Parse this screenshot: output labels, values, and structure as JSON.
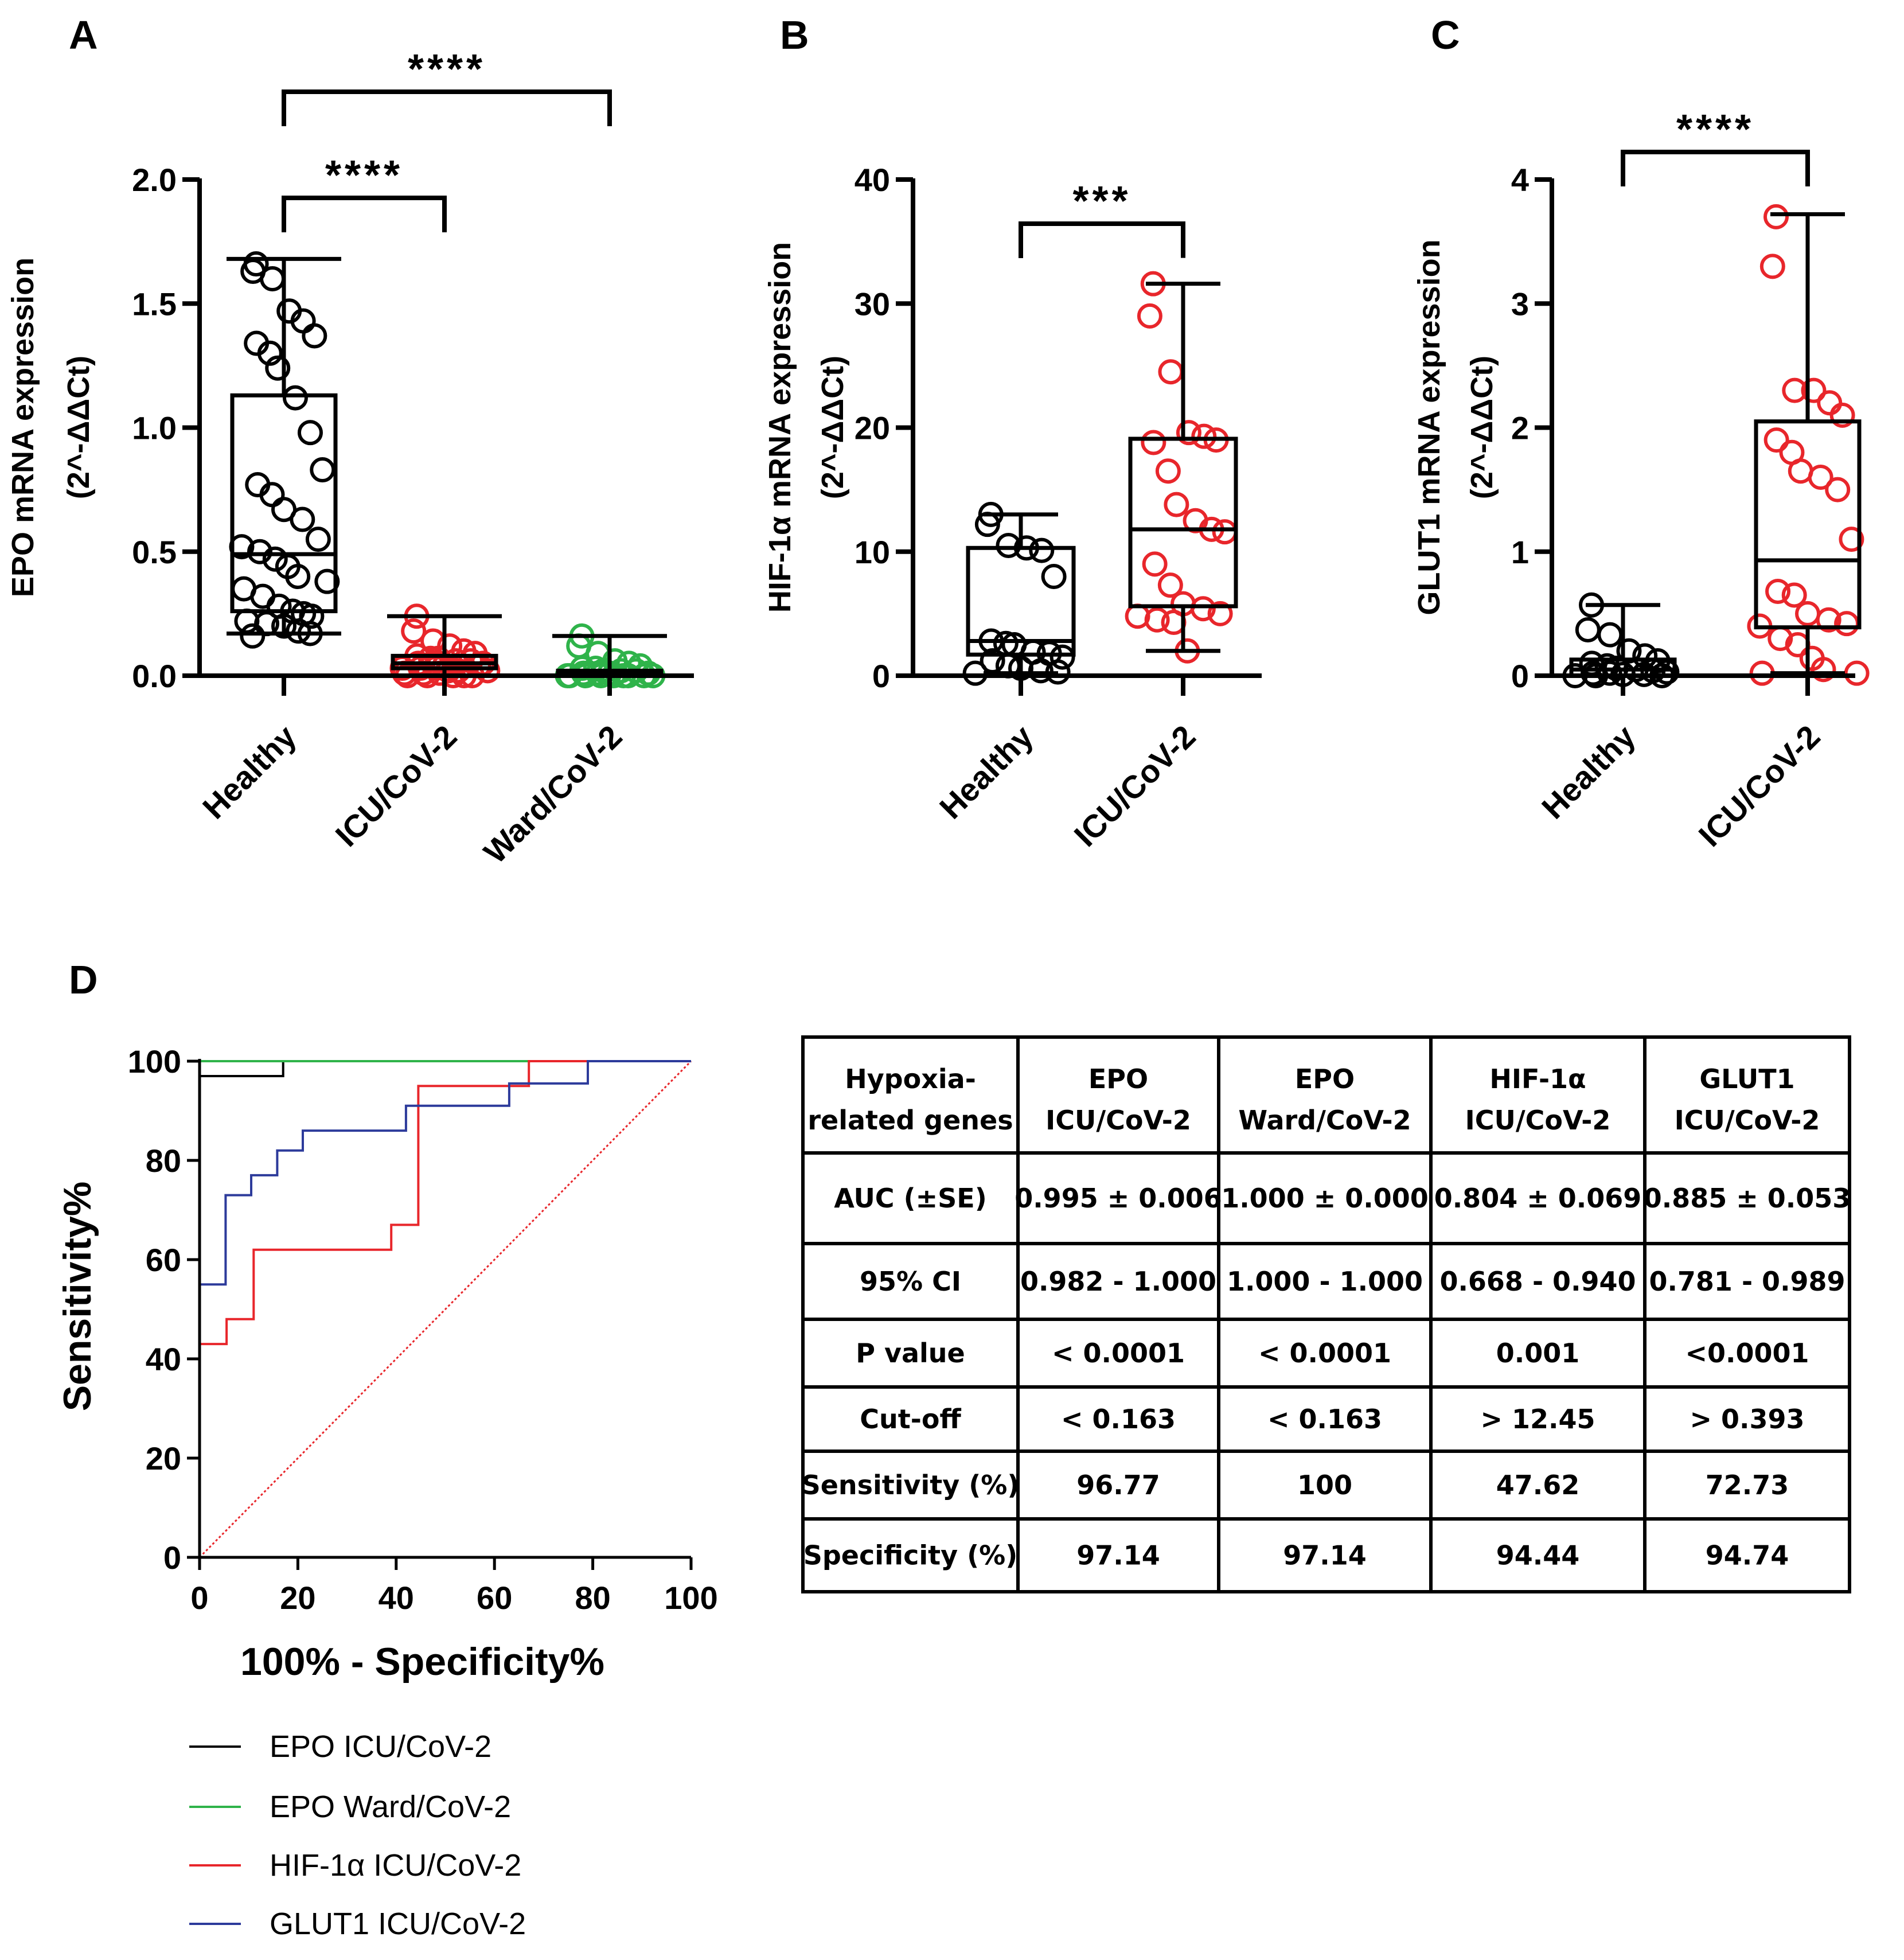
{
  "chart_data": [
    {
      "panel_label": "A",
      "type": "box",
      "ylabel_line1": "EPO mRNA expression",
      "ylabel_line2": "(2^-ΔΔCt)",
      "ylim": [
        0,
        2.0
      ],
      "yticks": [
        "0.0",
        "0.5",
        "1.0",
        "1.5",
        "2.0"
      ],
      "ytick_values": [
        0,
        0.5,
        1.0,
        1.5,
        2.0
      ],
      "categories": [
        "Healthy",
        "ICU/CoV-2",
        "Ward/CoV-2"
      ],
      "colors": [
        "#000000",
        "#e8262b",
        "#2fb34a"
      ],
      "boxes": [
        {
          "min": 0.17,
          "q1": 0.26,
          "median": 0.49,
          "q3": 1.13,
          "max": 1.68
        },
        {
          "min": 0.0,
          "q1": 0.03,
          "median": 0.05,
          "q3": 0.08,
          "max": 0.24
        },
        {
          "min": 0.0,
          "q1": 0.005,
          "median": 0.01,
          "q3": 0.02,
          "max": 0.16
        }
      ],
      "points": [
        [
          1.66,
          1.63,
          1.6,
          1.47,
          1.43,
          1.37,
          1.34,
          1.3,
          1.24,
          1.12,
          0.98,
          0.83,
          0.77,
          0.73,
          0.67,
          0.63,
          0.55,
          0.52,
          0.5,
          0.47,
          0.44,
          0.4,
          0.38,
          0.35,
          0.32,
          0.28,
          0.26,
          0.25,
          0.24,
          0.22,
          0.21,
          0.2,
          0.18,
          0.17,
          0.16
        ],
        [
          0.24,
          0.18,
          0.14,
          0.12,
          0.1,
          0.09,
          0.08,
          0.07,
          0.07,
          0.06,
          0.06,
          0.05,
          0.05,
          0.05,
          0.04,
          0.04,
          0.04,
          0.03,
          0.03,
          0.03,
          0.02,
          0.02,
          0.02,
          0.01,
          0.01,
          0.01,
          0.0,
          0.0,
          0.0,
          0.0,
          0.0
        ],
        [
          0.16,
          0.12,
          0.09,
          0.06,
          0.05,
          0.04,
          0.03,
          0.03,
          0.02,
          0.02,
          0.02,
          0.01,
          0.01,
          0.01,
          0.01,
          0.0,
          0.0,
          0.0,
          0.0,
          0.0,
          0.0,
          0.0,
          0.0,
          0.0
        ]
      ],
      "significance": [
        {
          "from": 0,
          "to": 1,
          "label": "****"
        },
        {
          "from": 0,
          "to": 2,
          "label": "****"
        }
      ]
    },
    {
      "panel_label": "B",
      "type": "box",
      "ylabel_line1": "HIF-1α mRNA expression",
      "ylabel_line2": "(2^-ΔΔCt)",
      "ylim": [
        0,
        40
      ],
      "yticks": [
        "0",
        "10",
        "20",
        "30",
        "40"
      ],
      "ytick_values": [
        0,
        10,
        20,
        30,
        40
      ],
      "categories": [
        "Healthy",
        "ICU/CoV-2"
      ],
      "colors": [
        "#000000",
        "#e8262b"
      ],
      "boxes": [
        {
          "min": 0.2,
          "q1": 1.7,
          "median": 2.8,
          "q3": 10.3,
          "max": 13.0
        },
        {
          "min": 2.0,
          "q1": 5.6,
          "median": 11.8,
          "q3": 19.1,
          "max": 31.6
        }
      ],
      "points": [
        [
          13.0,
          12.2,
          10.5,
          10.3,
          10.1,
          8.0,
          2.8,
          2.6,
          2.5,
          1.9,
          1.8,
          1.5,
          1.2,
          0.8,
          0.6,
          0.4,
          0.3,
          0.2
        ],
        [
          31.6,
          29.0,
          24.5,
          19.6,
          19.3,
          19.0,
          18.8,
          16.5,
          13.8,
          12.5,
          11.8,
          11.6,
          9.0,
          7.3,
          5.8,
          5.4,
          5.0,
          4.8,
          4.5,
          4.3,
          2.0
        ]
      ],
      "significance": [
        {
          "from": 0,
          "to": 1,
          "label": "***"
        }
      ]
    },
    {
      "panel_label": "C",
      "type": "box",
      "ylabel_line1": "GLUT1 mRNA expression",
      "ylabel_line2": "(2^-ΔΔCt)",
      "ylim": [
        0,
        4
      ],
      "yticks": [
        "0",
        "1",
        "2",
        "3",
        "4"
      ],
      "ytick_values": [
        0,
        1,
        2,
        3,
        4
      ],
      "categories": [
        "Healthy",
        "ICU/CoV-2"
      ],
      "colors": [
        "#000000",
        "#e8262b"
      ],
      "boxes": [
        {
          "min": 0.0,
          "q1": 0.0,
          "median": 0.05,
          "q3": 0.13,
          "max": 0.57
        },
        {
          "min": 0.02,
          "q1": 0.39,
          "median": 0.93,
          "q3": 2.05,
          "max": 3.72
        }
      ],
      "points": [
        [
          0.57,
          0.37,
          0.33,
          0.2,
          0.16,
          0.12,
          0.1,
          0.08,
          0.06,
          0.05,
          0.04,
          0.03,
          0.02,
          0.02,
          0.01,
          0.01,
          0.0,
          0.0,
          0.0
        ],
        [
          3.7,
          3.3,
          2.3,
          2.3,
          2.2,
          2.1,
          1.9,
          1.8,
          1.65,
          1.6,
          1.5,
          1.1,
          0.68,
          0.65,
          0.5,
          0.45,
          0.42,
          0.4,
          0.3,
          0.25,
          0.14,
          0.05,
          0.02,
          0.02
        ]
      ],
      "significance": [
        {
          "from": 0,
          "to": 1,
          "label": "****"
        }
      ]
    },
    {
      "panel_label": "D",
      "type": "line",
      "title": "",
      "xlabel": "100% - Specificity%",
      "ylabel": "Sensitivity%",
      "xlim": [
        0,
        100
      ],
      "ylim": [
        0,
        100
      ],
      "xticks": [
        "0",
        "20",
        "40",
        "60",
        "80",
        "100"
      ],
      "yticks": [
        "0",
        "20",
        "40",
        "60",
        "80",
        "100"
      ],
      "tick_values": [
        0,
        20,
        40,
        60,
        80,
        100
      ],
      "reference_line": {
        "x": [
          0,
          100
        ],
        "y": [
          0,
          100
        ],
        "color": "#e8262b",
        "style": "dotted"
      },
      "series": [
        {
          "name": "EPO ICU/CoV-2",
          "color": "#000000",
          "x": [
            0,
            0,
            0,
            0,
            17,
            17,
            100
          ],
          "y": [
            0,
            55,
            97,
            97,
            97,
            100,
            100
          ]
        },
        {
          "name": "EPO Ward/CoV-2",
          "color": "#2fb34a",
          "x": [
            0,
            0,
            100
          ],
          "y": [
            0,
            100,
            100
          ]
        },
        {
          "name": "HIF-1α ICU/CoV-2",
          "color": "#e8262b",
          "x": [
            0,
            0,
            0,
            5.5,
            5.5,
            11,
            11,
            39,
            39,
            44.5,
            44.5,
            67,
            67,
            100
          ],
          "y": [
            0,
            43,
            43,
            43,
            48,
            48,
            62,
            62,
            67,
            67,
            95,
            95,
            100,
            100
          ]
        },
        {
          "name": "GLUT1 ICU/CoV-2",
          "color": "#2d3b9b",
          "x": [
            0,
            0,
            0,
            5.3,
            5.3,
            10.5,
            10.5,
            15.8,
            15.8,
            21,
            21,
            42,
            42,
            63,
            63,
            79,
            79,
            100
          ],
          "y": [
            0,
            55,
            55,
            55,
            73,
            73,
            77,
            77,
            82,
            82,
            86,
            86,
            91,
            91,
            95.5,
            95.5,
            100,
            100
          ]
        }
      ]
    },
    {
      "type": "table",
      "columns": [
        [
          "Hypoxia-",
          "related genes"
        ],
        [
          "EPO",
          "ICU/CoV-2"
        ],
        [
          "EPO",
          "Ward/CoV-2"
        ],
        [
          "HIF-1α",
          "ICU/CoV-2"
        ],
        [
          "GLUT1",
          "ICU/CoV-2"
        ]
      ],
      "rows": [
        [
          "AUC (±SE)",
          "0.995 ± 0.006",
          "1.000 ± 0.000",
          "0.804 ± 0.069",
          "0.885 ± 0.053"
        ],
        [
          "95% CI",
          "0.982 - 1.000",
          "1.000 - 1.000",
          "0.668 - 0.940",
          "0.781 - 0.989"
        ],
        [
          "P value",
          "< 0.0001",
          "< 0.0001",
          "0.001",
          "<0.0001"
        ],
        [
          "Cut-off",
          "< 0.163",
          "< 0.163",
          "> 12.45",
          "> 0.393"
        ],
        [
          "Sensitivity (%)",
          "96.77",
          "100",
          "47.62",
          "72.73"
        ],
        [
          "Specificity (%)",
          "97.14",
          "97.14",
          "94.44",
          "94.74"
        ]
      ]
    }
  ]
}
